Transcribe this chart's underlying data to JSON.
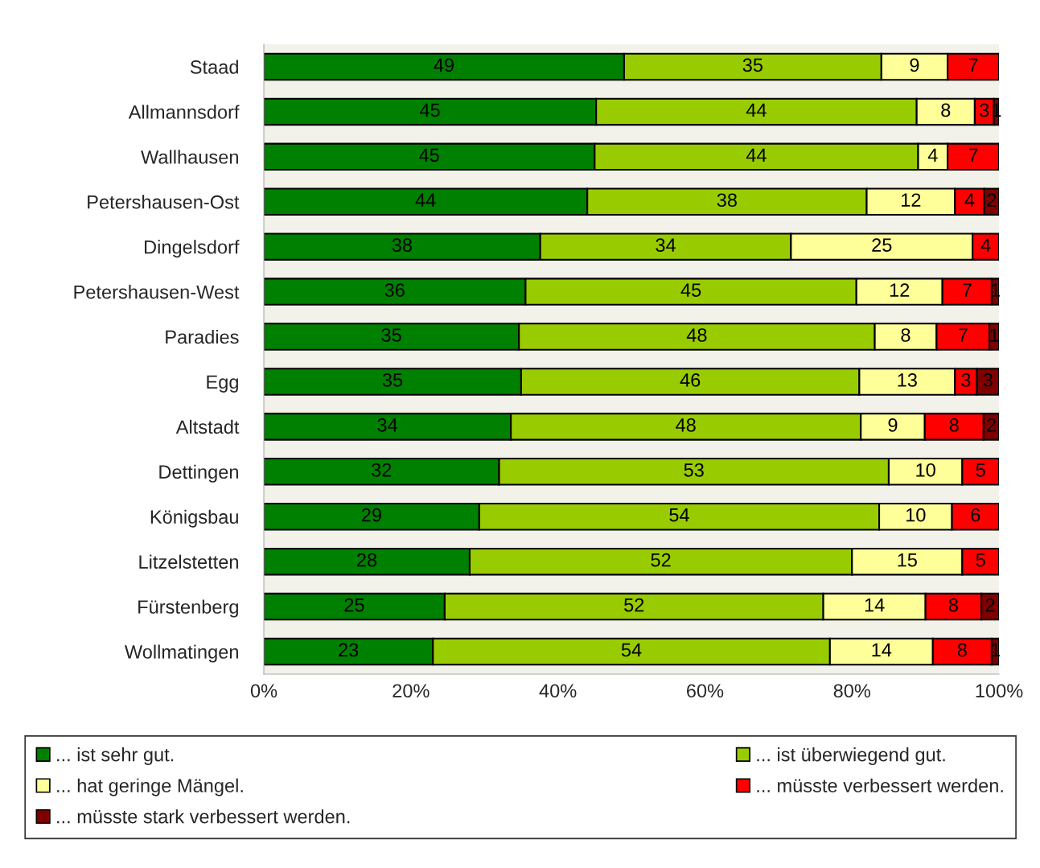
{
  "chart_data": {
    "type": "bar",
    "orientation": "horizontal",
    "stacked": true,
    "categories": [
      "Staad",
      "Allmannsdorf",
      "Wallhausen",
      "Petershausen-Ost",
      "Dingelsdorf",
      "Petershausen-West",
      "Paradies",
      "Egg",
      "Altstadt",
      "Dettingen",
      "Königsbau",
      "Litzelstetten",
      "Fürstenberg",
      "Wollmatingen"
    ],
    "series": [
      {
        "name": "... ist sehr gut.",
        "color": "#008000",
        "values": [
          49,
          45.2,
          45,
          44,
          37.6,
          35.6,
          34.7,
          35,
          33.6,
          32,
          29.3,
          28,
          24.6,
          23
        ],
        "value_labels": [
          "49",
          "45",
          "45",
          "44",
          "38",
          "36",
          "35",
          "35",
          "34",
          "32",
          "29",
          "28",
          "25",
          "23"
        ]
      },
      {
        "name": "... ist überwiegend gut.",
        "color": "#99cc00",
        "values": [
          35,
          43.6,
          44,
          38,
          34.1,
          45.0,
          48.4,
          46,
          47.6,
          53,
          54.4,
          52,
          51.5,
          54
        ],
        "value_labels": [
          "35",
          "44",
          "44",
          "38",
          "34",
          "45",
          "48",
          "46",
          "48",
          "53",
          "54",
          "52",
          "52",
          "54"
        ]
      },
      {
        "name": "... hat geringe Mängel.",
        "color": "#ffff99",
        "values": [
          9,
          7.9,
          4,
          12,
          24.7,
          11.7,
          8.4,
          13,
          8.7,
          10,
          9.9,
          15,
          13.9,
          14
        ],
        "value_labels": [
          "9",
          "8",
          "4",
          "12",
          "25",
          "12",
          "8",
          "13",
          "9",
          "10",
          "10",
          "15",
          "14",
          "14"
        ]
      },
      {
        "name": "... müsste verbessert werden.",
        "color": "#ff0000",
        "values": [
          7,
          2.6,
          7,
          4,
          3.6,
          6.7,
          7.2,
          3,
          8.0,
          5,
          6.4,
          5,
          7.6,
          8
        ],
        "value_labels": [
          "7",
          "3",
          "7",
          "4",
          "4",
          "7",
          "7",
          "3",
          "8",
          "5",
          "6",
          "5",
          "8",
          "8"
        ]
      },
      {
        "name": "... müsste stark verbessert werden.",
        "color": "#800000",
        "values": [
          null,
          0.7,
          null,
          2,
          null,
          1.0,
          1.3,
          3,
          2.1,
          null,
          null,
          null,
          2.4,
          1
        ],
        "value_labels": [
          null,
          "1",
          null,
          "2",
          null,
          "1",
          "1",
          "3",
          "2",
          null,
          null,
          null,
          "2",
          "1"
        ]
      }
    ],
    "xlim": [
      0,
      100
    ],
    "xticks": [
      {
        "value": 0,
        "label": "0%"
      },
      {
        "value": 20,
        "label": "20%"
      },
      {
        "value": 40,
        "label": "40%"
      },
      {
        "value": 60,
        "label": "60%"
      },
      {
        "value": 80,
        "label": "80%"
      },
      {
        "value": 100,
        "label": "100%"
      }
    ],
    "grid": false,
    "legend": "bottom"
  }
}
